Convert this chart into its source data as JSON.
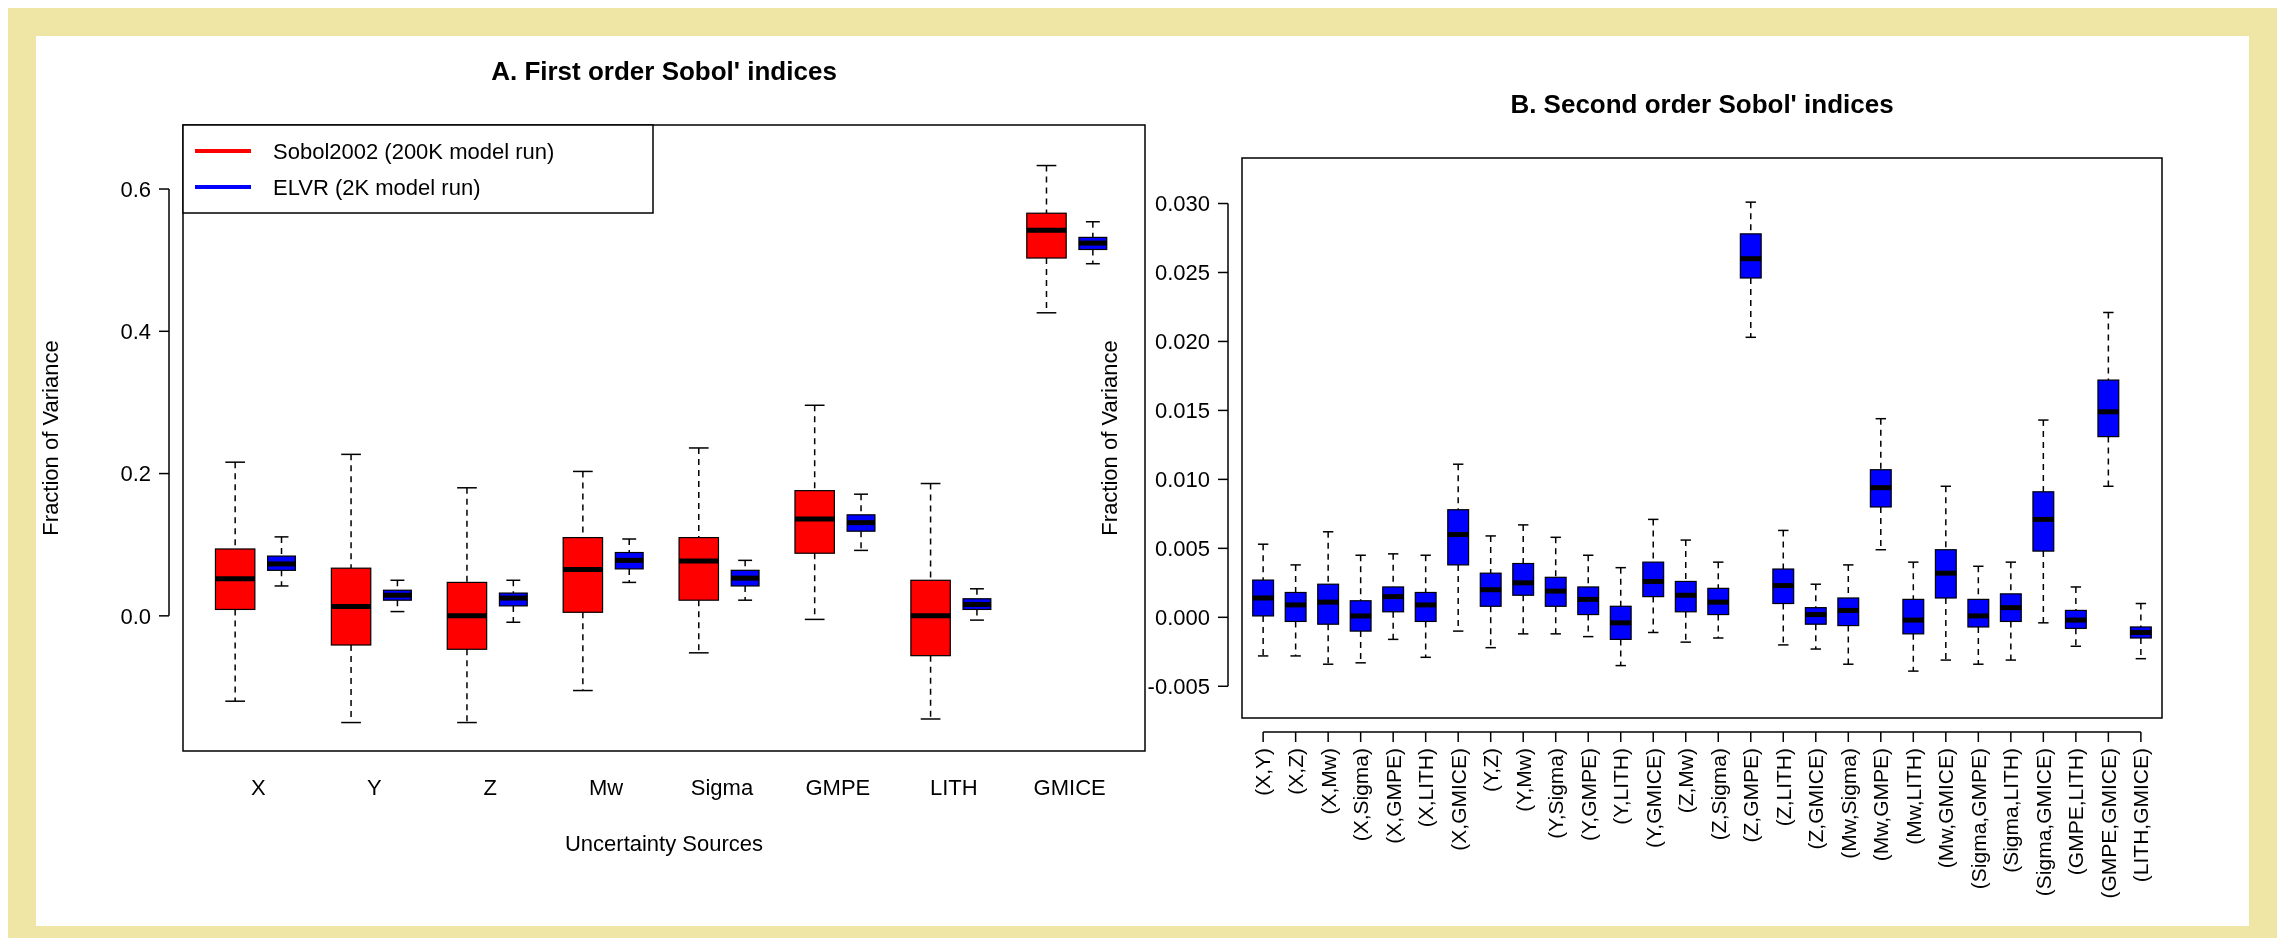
{
  "chart_data": [
    {
      "type": "box",
      "title": "A. First order Sobol' indices",
      "xlabel": "Uncertainty Sources",
      "ylabel": "Fraction of Variance",
      "categories": [
        "X",
        "Y",
        "Z",
        "Mw",
        "Sigma",
        "GMPE",
        "LITH",
        "GMICE"
      ],
      "ylim": [
        -0.19,
        0.69
      ],
      "yticks": [
        {
          "value": 0,
          "label": "0.0"
        },
        {
          "value": 0.2,
          "label": "0.2"
        },
        {
          "value": 0.4,
          "label": "0.4"
        },
        {
          "value": 0.6,
          "label": "0.6"
        }
      ],
      "legend": "top left",
      "series": [
        {
          "name": "Sobol2002 (200K model run)",
          "color": "#ff0000",
          "boxes": [
            {
              "low": -0.12,
              "q1": 0.009,
              "median": 0.052,
              "q3": 0.094,
              "high": 0.216
            },
            {
              "low": -0.15,
              "q1": -0.041,
              "median": 0.013,
              "q3": 0.067,
              "high": 0.227
            },
            {
              "low": -0.15,
              "q1": -0.047,
              "median": 0,
              "q3": 0.047,
              "high": 0.18
            },
            {
              "low": -0.105,
              "q1": 0.005,
              "median": 0.065,
              "q3": 0.11,
              "high": 0.203
            },
            {
              "low": -0.052,
              "q1": 0.022,
              "median": 0.077,
              "q3": 0.11,
              "high": 0.236
            },
            {
              "low": -0.005,
              "q1": 0.088,
              "median": 0.136,
              "q3": 0.176,
              "high": 0.296
            },
            {
              "low": -0.145,
              "q1": -0.056,
              "median": 0,
              "q3": 0.05,
              "high": 0.186
            },
            {
              "low": 0.426,
              "q1": 0.503,
              "median": 0.542,
              "q3": 0.566,
              "high": 0.633
            }
          ]
        },
        {
          "name": "ELVR (2K model run)",
          "color": "#0000ff",
          "boxes": [
            {
              "low": 0.042,
              "q1": 0.064,
              "median": 0.073,
              "q3": 0.084,
              "high": 0.111
            },
            {
              "low": 0.006,
              "q1": 0.022,
              "median": 0.029,
              "q3": 0.036,
              "high": 0.05
            },
            {
              "low": -0.009,
              "q1": 0.014,
              "median": 0.025,
              "q3": 0.032,
              "high": 0.05
            },
            {
              "low": 0.047,
              "q1": 0.066,
              "median": 0.078,
              "q3": 0.089,
              "high": 0.108
            },
            {
              "low": 0.022,
              "q1": 0.042,
              "median": 0.053,
              "q3": 0.064,
              "high": 0.078
            },
            {
              "low": 0.092,
              "q1": 0.119,
              "median": 0.131,
              "q3": 0.142,
              "high": 0.171
            },
            {
              "low": -0.006,
              "q1": 0.009,
              "median": 0.016,
              "q3": 0.024,
              "high": 0.038
            },
            {
              "low": 0.495,
              "q1": 0.515,
              "median": 0.524,
              "q3": 0.532,
              "high": 0.554
            }
          ]
        }
      ]
    },
    {
      "type": "box",
      "title": "B. Second order Sobol' indices",
      "ylabel": "Fraction of Variance",
      "categories": [
        "(X,Y)",
        "(X,Z)",
        "(X,Mw)",
        "(X,Sigma)",
        "(X,GMPE)",
        "(X,LITH)",
        "(X,GMICE)",
        "(Y,Z)",
        "(Y,Mw)",
        "(Y,Sigma)",
        "(Y,GMPE)",
        "(Y,LITH)",
        "(Y,GMICE)",
        "(Z,Mw)",
        "(Z,Sigma)",
        "(Z,GMPE)",
        "(Z,LITH)",
        "(Z,GMICE)",
        "(Mw,Sigma)",
        "(Mw,GMPE)",
        "(Mw,LITH)",
        "(Mw,GMICE)",
        "(Sigma,GMPE)",
        "(Sigma,LITH)",
        "(Sigma,GMICE)",
        "(GMPE,LITH)",
        "(GMPE,GMICE)",
        "(LITH,GMICE)"
      ],
      "ylim": [
        -0.0073,
        0.0333
      ],
      "yticks": [
        {
          "value": -0.005,
          "label": "-0.005"
        },
        {
          "value": 0,
          "label": "0.000"
        },
        {
          "value": 0.005,
          "label": "0.005"
        },
        {
          "value": 0.01,
          "label": "0.010"
        },
        {
          "value": 0.015,
          "label": "0.015"
        },
        {
          "value": 0.02,
          "label": "0.020"
        },
        {
          "value": 0.025,
          "label": "0.025"
        },
        {
          "value": 0.03,
          "label": "0.030"
        }
      ],
      "series": [
        {
          "color": "#0000ff",
          "boxes": [
            {
              "low": -0.0028,
              "q1": 0.0001,
              "median": 0.0014,
              "q3": 0.0027,
              "high": 0.0053
            },
            {
              "low": -0.0028,
              "q1": -0.0003,
              "median": 0.0009,
              "q3": 0.0018,
              "high": 0.0038
            },
            {
              "low": -0.0034,
              "q1": -0.0005,
              "median": 0.0011,
              "q3": 0.0024,
              "high": 0.0062
            },
            {
              "low": -0.0033,
              "q1": -0.001,
              "median": 0.0001,
              "q3": 0.0012,
              "high": 0.0045
            },
            {
              "low": -0.0016,
              "q1": 0.0004,
              "median": 0.0015,
              "q3": 0.0022,
              "high": 0.0046
            },
            {
              "low": -0.0029,
              "q1": -0.0003,
              "median": 0.0009,
              "q3": 0.0018,
              "high": 0.0045
            },
            {
              "low": -0.001,
              "q1": 0.0038,
              "median": 0.006,
              "q3": 0.0078,
              "high": 0.0111
            },
            {
              "low": -0.0022,
              "q1": 0.0008,
              "median": 0.002,
              "q3": 0.0032,
              "high": 0.0059
            },
            {
              "low": -0.0012,
              "q1": 0.0016,
              "median": 0.0025,
              "q3": 0.0039,
              "high": 0.0067
            },
            {
              "low": -0.0012,
              "q1": 0.0008,
              "median": 0.0019,
              "q3": 0.0029,
              "high": 0.0058
            },
            {
              "low": -0.0014,
              "q1": 0.0002,
              "median": 0.0013,
              "q3": 0.0022,
              "high": 0.0045
            },
            {
              "low": -0.0035,
              "q1": -0.0016,
              "median": -0.0004,
              "q3": 0.0008,
              "high": 0.0036
            },
            {
              "low": -0.0011,
              "q1": 0.0015,
              "median": 0.0026,
              "q3": 0.004,
              "high": 0.0071
            },
            {
              "low": -0.0018,
              "q1": 0.0004,
              "median": 0.0016,
              "q3": 0.0026,
              "high": 0.0056
            },
            {
              "low": -0.0015,
              "q1": 0.0002,
              "median": 0.0011,
              "q3": 0.0021,
              "high": 0.004
            },
            {
              "low": 0.0203,
              "q1": 0.0246,
              "median": 0.026,
              "q3": 0.0278,
              "high": 0.0301
            },
            {
              "low": -0.002,
              "q1": 0.001,
              "median": 0.0023,
              "q3": 0.0035,
              "high": 0.0063
            },
            {
              "low": -0.0023,
              "q1": -0.0005,
              "median": 0.0002,
              "q3": 0.0007,
              "high": 0.0024
            },
            {
              "low": -0.0034,
              "q1": -0.0006,
              "median": 0.0005,
              "q3": 0.0014,
              "high": 0.0038
            },
            {
              "low": 0.0049,
              "q1": 0.008,
              "median": 0.0094,
              "q3": 0.0107,
              "high": 0.0144
            },
            {
              "low": -0.0039,
              "q1": -0.0012,
              "median": -0.0002,
              "q3": 0.0013,
              "high": 0.004
            },
            {
              "low": -0.0031,
              "q1": 0.0014,
              "median": 0.0032,
              "q3": 0.0049,
              "high": 0.0095
            },
            {
              "low": -0.0034,
              "q1": -0.0007,
              "median": 0.0001,
              "q3": 0.0013,
              "high": 0.0037
            },
            {
              "low": -0.0031,
              "q1": -0.0003,
              "median": 0.0007,
              "q3": 0.0017,
              "high": 0.004
            },
            {
              "low": -0.0004,
              "q1": 0.0048,
              "median": 0.0071,
              "q3": 0.0091,
              "high": 0.0143
            },
            {
              "low": -0.0021,
              "q1": -0.0008,
              "median": -0.0002,
              "q3": 0.0005,
              "high": 0.0022
            },
            {
              "low": 0.0095,
              "q1": 0.0131,
              "median": 0.0149,
              "q3": 0.0172,
              "high": 0.0221
            },
            {
              "low": -0.003,
              "q1": -0.0015,
              "median": -0.0011,
              "q3": -0.0007,
              "high": 0.001
            }
          ]
        }
      ]
    }
  ]
}
